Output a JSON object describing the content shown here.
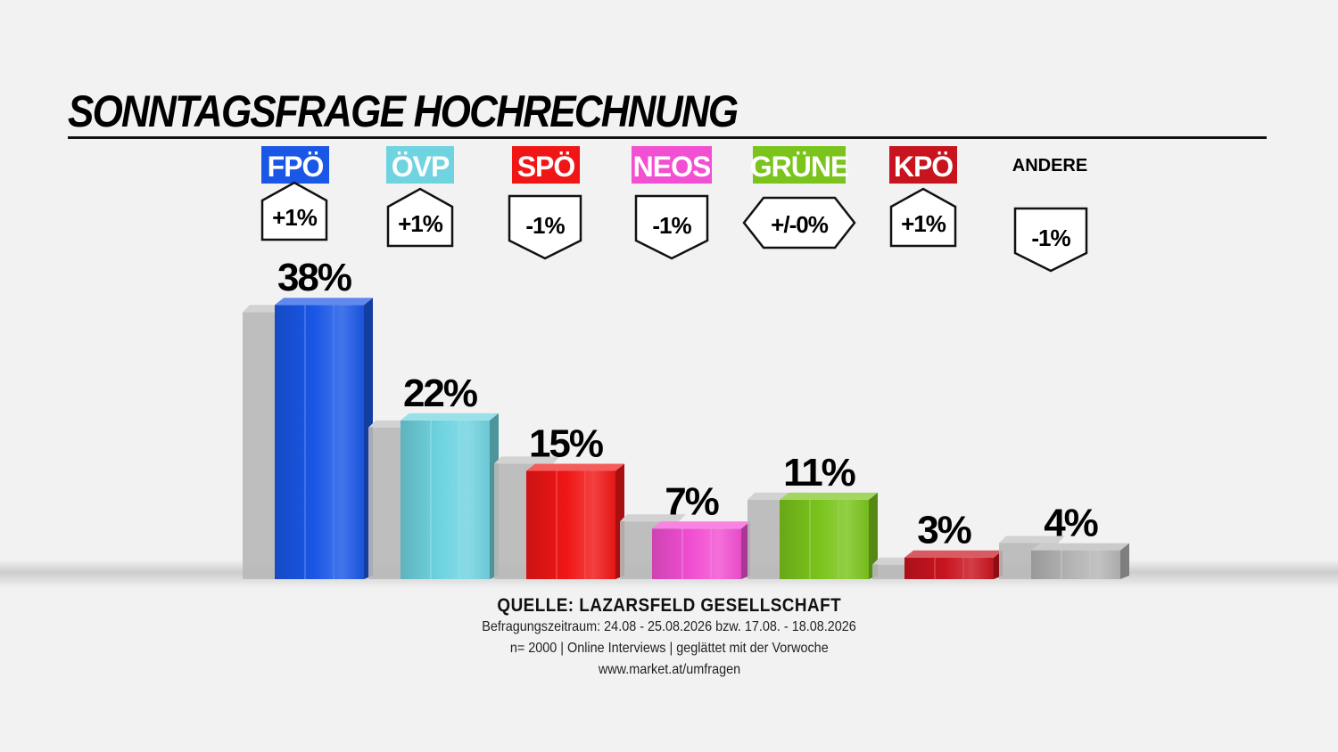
{
  "header": {
    "title": "SONNTAGSFRAGE HOCHRECHNUNG"
  },
  "colors": {
    "FPÖ": "#1a57e6",
    "ÖVP": "#6fd3e0",
    "SPÖ": "#f01616",
    "NEOS": "#f24fd2",
    "GRÜNE": "#7ac41c",
    "KPÖ": "#c8141e",
    "ANDERE": "#b4b4b4",
    "previous": "#b8b8b8"
  },
  "chart_data": {
    "type": "bar",
    "title": "SONNTAGSFRAGE HOCHRECHNUNG",
    "categories": [
      "FPÖ",
      "ÖVP",
      "SPÖ",
      "NEOS",
      "GRÜNE",
      "KPÖ",
      "ANDERE"
    ],
    "series": [
      {
        "values": [
          38,
          22,
          15,
          7,
          11,
          3,
          4
        ]
      },
      {
        "values": [
          37,
          21,
          16,
          8,
          11,
          2,
          5
        ]
      }
    ],
    "value_labels": [
      "38%",
      "22%",
      "15%",
      "7%",
      "11%",
      "3%",
      "4%"
    ],
    "changes": [
      "+1%",
      "+1%",
      "-1%",
      "-1%",
      "+/-0%",
      "+1%",
      "-1%"
    ],
    "change_direction": [
      "up",
      "up",
      "down",
      "down",
      "flat",
      "up",
      "down"
    ],
    "ylim": [
      0,
      40
    ],
    "grid": false,
    "legend": "none"
  },
  "source": {
    "line1": "QUELLE: LAZARSFELD GESELLSCHAFT",
    "line2": "Befragungszeitraum: 24.08 - 25.08.2026 bzw.  17.08. - 18.08.2026",
    "line3": "n= 2000 | Online Interviews | geglättet mit der Vorwoche",
    "line4": "www.market.at/umfragen"
  }
}
